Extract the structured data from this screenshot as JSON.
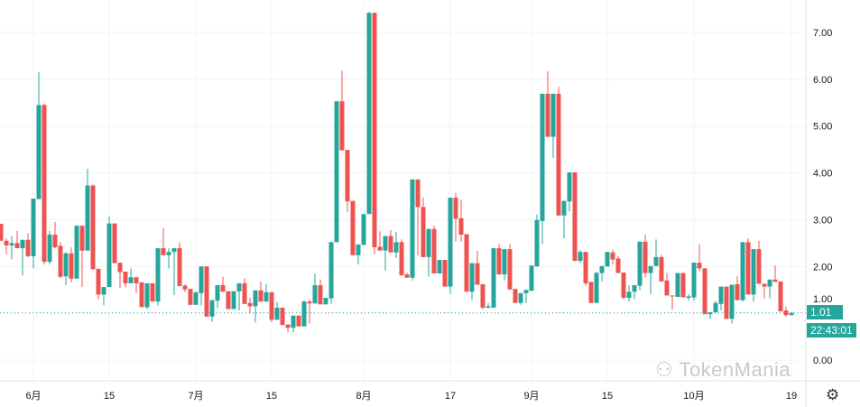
{
  "chart_data": {
    "type": "candlestick",
    "y_ticks": [
      "0.00",
      "1.00",
      "2.00",
      "3.00",
      "4.00",
      "5.00",
      "6.00",
      "7.00"
    ],
    "ylim": [
      -0.4,
      7.7
    ],
    "x_ticks": [
      {
        "label": "6月",
        "index": 6
      },
      {
        "label": "15",
        "index": 20
      },
      {
        "label": "7月",
        "index": 36
      },
      {
        "label": "15",
        "index": 50
      },
      {
        "label": "8月",
        "index": 67
      },
      {
        "label": "17",
        "index": 83
      },
      {
        "label": "9月",
        "index": 98
      },
      {
        "label": "15",
        "index": 112
      },
      {
        "label": "10月",
        "index": 128
      },
      {
        "label": "19",
        "index": 146
      }
    ],
    "last_price": 1.01,
    "last_price_label": "1.01",
    "countdown": "22:43:01",
    "grid": true,
    "colors": {
      "up": "#26a69a",
      "down": "#ef5350",
      "grid": "#f0f3fa"
    },
    "ohlc_fields": [
      "open",
      "high",
      "low",
      "close"
    ],
    "candles": [
      [
        2.91,
        2.91,
        2.55,
        2.55
      ],
      [
        2.55,
        2.6,
        2.26,
        2.45
      ],
      [
        2.45,
        2.65,
        2.15,
        2.5
      ],
      [
        2.5,
        2.76,
        2.39,
        2.39
      ],
      [
        2.39,
        2.57,
        1.81,
        2.57
      ],
      [
        2.57,
        2.71,
        2.2,
        2.22
      ],
      [
        2.22,
        3.45,
        1.96,
        3.45
      ],
      [
        3.44,
        6.15,
        3.44,
        5.45
      ],
      [
        5.45,
        5.48,
        2.04,
        2.1
      ],
      [
        2.1,
        2.76,
        2.04,
        2.68
      ],
      [
        2.68,
        2.95,
        2.39,
        2.41
      ],
      [
        2.44,
        2.52,
        1.75,
        1.78
      ],
      [
        1.79,
        2.31,
        1.6,
        2.28
      ],
      [
        2.28,
        2.41,
        1.66,
        1.74
      ],
      [
        1.74,
        2.88,
        1.74,
        2.87
      ],
      [
        2.87,
        2.87,
        1.56,
        2.34
      ],
      [
        2.34,
        4.09,
        2.34,
        3.73
      ],
      [
        3.73,
        3.75,
        1.94,
        1.94
      ],
      [
        1.95,
        1.95,
        1.3,
        1.4
      ],
      [
        1.4,
        1.56,
        1.17,
        1.56
      ],
      [
        1.56,
        3.07,
        1.56,
        2.92
      ],
      [
        2.92,
        2.92,
        2.07,
        2.07
      ],
      [
        2.08,
        2.08,
        1.54,
        1.88
      ],
      [
        1.89,
        1.89,
        1.56,
        1.64
      ],
      [
        1.64,
        1.96,
        1.64,
        1.77
      ],
      [
        1.77,
        1.77,
        1.43,
        1.64
      ],
      [
        1.66,
        1.66,
        1.13,
        1.13
      ],
      [
        1.13,
        1.64,
        1.09,
        1.64
      ],
      [
        1.64,
        1.64,
        1.25,
        1.25
      ],
      [
        1.25,
        2.39,
        1.17,
        2.39
      ],
      [
        2.39,
        2.82,
        2.24,
        2.24
      ],
      [
        2.24,
        2.39,
        1.96,
        2.31
      ],
      [
        2.31,
        2.39,
        1.39,
        2.39
      ],
      [
        2.39,
        2.52,
        1.58,
        1.58
      ],
      [
        1.59,
        1.62,
        1.45,
        1.51
      ],
      [
        1.52,
        1.52,
        1.18,
        1.18
      ],
      [
        1.18,
        1.45,
        1.18,
        1.45
      ],
      [
        1.43,
        2.0,
        1.17,
        2.0
      ],
      [
        2.0,
        2.0,
        0.93,
        0.93
      ],
      [
        0.93,
        1.28,
        0.82,
        1.28
      ],
      [
        1.27,
        1.6,
        1.11,
        1.6
      ],
      [
        1.6,
        1.78,
        1.46,
        1.46
      ],
      [
        1.47,
        1.47,
        1.09,
        1.09
      ],
      [
        1.09,
        1.47,
        1.09,
        1.47
      ],
      [
        1.47,
        1.64,
        1.06,
        1.64
      ],
      [
        1.64,
        1.75,
        1.2,
        1.2
      ],
      [
        1.22,
        1.33,
        1.01,
        1.15
      ],
      [
        1.15,
        1.49,
        0.8,
        1.49
      ],
      [
        1.49,
        1.68,
        1.25,
        1.25
      ],
      [
        1.25,
        1.62,
        1.25,
        1.45
      ],
      [
        1.45,
        1.45,
        0.81,
        0.86
      ],
      [
        0.86,
        1.24,
        0.86,
        1.12
      ],
      [
        1.12,
        1.12,
        0.75,
        0.75
      ],
      [
        0.76,
        0.76,
        0.59,
        0.69
      ],
      [
        0.69,
        0.95,
        0.59,
        0.95
      ],
      [
        0.95,
        0.95,
        0.72,
        0.72
      ],
      [
        0.72,
        1.28,
        0.72,
        1.25
      ],
      [
        1.25,
        1.3,
        0.78,
        1.21
      ],
      [
        1.21,
        1.85,
        1.21,
        1.6
      ],
      [
        1.6,
        1.72,
        1.19,
        1.19
      ],
      [
        1.19,
        1.33,
        1.19,
        1.33
      ],
      [
        1.32,
        2.52,
        1.2,
        2.52
      ],
      [
        2.52,
        5.53,
        2.52,
        5.53
      ],
      [
        5.53,
        6.18,
        4.48,
        4.48
      ],
      [
        4.49,
        4.49,
        3.16,
        3.39
      ],
      [
        3.4,
        3.4,
        2.24,
        2.24
      ],
      [
        2.24,
        2.47,
        2.04,
        2.47
      ],
      [
        2.46,
        3.12,
        2.46,
        3.12
      ],
      [
        3.12,
        7.44,
        3.12,
        7.42
      ],
      [
        7.42,
        7.42,
        2.26,
        2.41
      ],
      [
        2.42,
        2.75,
        2.34,
        2.34
      ],
      [
        2.34,
        2.65,
        1.91,
        2.65
      ],
      [
        2.65,
        2.78,
        2.3,
        2.3
      ],
      [
        2.3,
        2.74,
        2.18,
        2.52
      ],
      [
        2.52,
        2.58,
        1.81,
        1.81
      ],
      [
        1.83,
        1.86,
        1.76,
        1.76
      ],
      [
        1.76,
        3.86,
        1.7,
        3.86
      ],
      [
        3.86,
        3.86,
        2.24,
        3.27
      ],
      [
        3.27,
        3.47,
        2.2,
        2.2
      ],
      [
        2.2,
        2.8,
        1.78,
        2.8
      ],
      [
        2.8,
        2.87,
        1.85,
        1.85
      ],
      [
        1.85,
        2.14,
        1.85,
        2.14
      ],
      [
        2.14,
        2.14,
        1.57,
        1.57
      ],
      [
        1.57,
        3.47,
        1.41,
        3.47
      ],
      [
        3.47,
        3.57,
        2.53,
        3.02
      ],
      [
        3.03,
        3.43,
        2.53,
        2.68
      ],
      [
        2.69,
        2.69,
        1.46,
        1.46
      ],
      [
        1.46,
        2.07,
        1.28,
        2.07
      ],
      [
        2.07,
        2.33,
        1.61,
        1.61
      ],
      [
        1.62,
        1.62,
        1.09,
        1.12
      ],
      [
        1.12,
        1.22,
        1.11,
        1.15
      ],
      [
        1.12,
        2.39,
        1.12,
        2.39
      ],
      [
        2.39,
        2.48,
        1.83,
        1.83
      ],
      [
        1.83,
        2.37,
        1.7,
        2.37
      ],
      [
        2.37,
        2.48,
        1.51,
        1.51
      ],
      [
        1.52,
        1.52,
        1.22,
        1.22
      ],
      [
        1.22,
        1.43,
        1.18,
        1.43
      ],
      [
        1.43,
        1.5,
        1.22,
        1.5
      ],
      [
        1.48,
        2.02,
        1.48,
        2.02
      ],
      [
        2.0,
        3.11,
        2.0,
        2.99
      ],
      [
        2.97,
        5.69,
        2.48,
        5.69
      ],
      [
        5.69,
        6.17,
        4.77,
        4.77
      ],
      [
        4.77,
        5.69,
        4.32,
        5.69
      ],
      [
        5.69,
        5.84,
        3.09,
        3.09
      ],
      [
        3.09,
        3.4,
        2.6,
        3.4
      ],
      [
        3.39,
        4.01,
        3.18,
        4.01
      ],
      [
        4.01,
        4.01,
        2.12,
        2.12
      ],
      [
        2.12,
        2.35,
        2.07,
        2.31
      ],
      [
        2.31,
        2.31,
        1.59,
        1.64
      ],
      [
        1.67,
        1.67,
        1.22,
        1.22
      ],
      [
        1.22,
        1.89,
        1.22,
        1.86
      ],
      [
        1.86,
        2.01,
        1.68,
        2.01
      ],
      [
        2.0,
        2.31,
        2.0,
        2.31
      ],
      [
        2.3,
        2.36,
        2.04,
        2.15
      ],
      [
        2.17,
        2.22,
        1.86,
        1.86
      ],
      [
        1.87,
        1.87,
        1.3,
        1.33
      ],
      [
        1.33,
        1.6,
        1.25,
        1.46
      ],
      [
        1.46,
        1.6,
        1.3,
        1.6
      ],
      [
        1.59,
        2.53,
        1.49,
        2.53
      ],
      [
        2.53,
        2.68,
        1.77,
        1.86
      ],
      [
        1.86,
        2.01,
        1.41,
        2.01
      ],
      [
        2.01,
        2.58,
        2.01,
        2.2
      ],
      [
        2.2,
        2.25,
        1.68,
        1.68
      ],
      [
        1.7,
        1.86,
        1.38,
        1.38
      ],
      [
        1.38,
        1.38,
        1.07,
        1.36
      ],
      [
        1.35,
        1.86,
        1.35,
        1.86
      ],
      [
        1.86,
        1.86,
        1.34,
        1.34
      ],
      [
        1.33,
        1.41,
        1.27,
        1.36
      ],
      [
        1.34,
        2.08,
        1.27,
        2.08
      ],
      [
        2.08,
        2.47,
        1.9,
        1.96
      ],
      [
        1.96,
        1.96,
        0.98,
        0.98
      ],
      [
        0.98,
        1.02,
        0.88,
        1.02
      ],
      [
        1.02,
        1.27,
        1.02,
        1.22
      ],
      [
        1.2,
        1.57,
        1.06,
        1.57
      ],
      [
        1.57,
        1.57,
        0.88,
        0.88
      ],
      [
        0.88,
        1.61,
        0.78,
        1.61
      ],
      [
        1.62,
        1.79,
        1.28,
        1.28
      ],
      [
        1.28,
        2.52,
        1.25,
        2.52
      ],
      [
        2.52,
        2.6,
        1.4,
        1.4
      ],
      [
        1.4,
        2.37,
        1.25,
        2.37
      ],
      [
        2.37,
        2.55,
        1.63,
        1.63
      ],
      [
        1.63,
        1.63,
        1.32,
        1.57
      ],
      [
        1.57,
        1.72,
        1.32,
        1.72
      ],
      [
        1.72,
        2.02,
        1.67,
        1.67
      ],
      [
        1.68,
        1.68,
        1.04,
        1.04
      ],
      [
        1.06,
        1.14,
        0.93,
        0.96
      ],
      [
        0.96,
        1.02,
        0.96,
        1.01
      ]
    ]
  },
  "watermark": "TokenMania",
  "settings_icon": "gear-icon"
}
